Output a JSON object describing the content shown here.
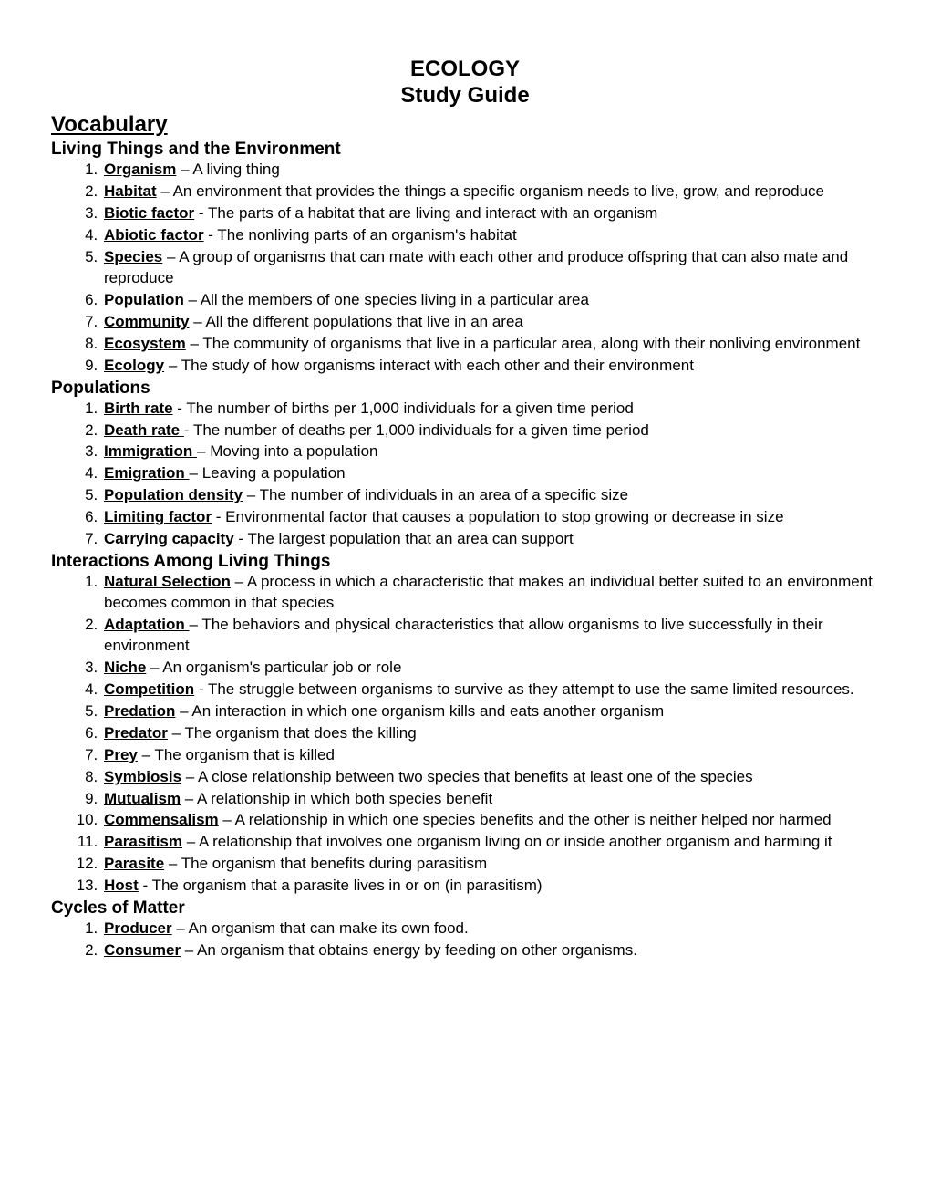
{
  "title_line1": "ECOLOGY",
  "title_line2": "Study Guide",
  "vocab_heading": "Vocabulary",
  "sections": [
    {
      "heading": "Living Things and the Environment",
      "items": [
        {
          "term": "Organism",
          "def": " – A living thing"
        },
        {
          "term": "Habitat",
          "def": " – An environment that provides the things a specific organism needs to live, grow, and reproduce"
        },
        {
          "term": "Biotic factor",
          "def": " - The parts of a habitat that are living and interact with an organism"
        },
        {
          "term": "Abiotic factor",
          "def": " - The nonliving parts of an organism's habitat"
        },
        {
          "term": "Species",
          "def": " – A group of organisms that can mate with each other and produce offspring that can also mate and reproduce"
        },
        {
          "term": "Population",
          "def": " – All the members of one species living in a particular area"
        },
        {
          "term": "Community",
          "def": " – All the different populations that live in an area"
        },
        {
          "term": "Ecosystem",
          "def": " – The community of organisms that live in a particular area, along with their nonliving environment"
        },
        {
          "term": "Ecology",
          "def": " – The study of how organisms interact with each other and their environment"
        }
      ]
    },
    {
      "heading": "Populations",
      "items": [
        {
          "term": "Birth rate",
          "def": " - The number of births per 1,000 individuals for a given time period"
        },
        {
          "term": "Death rate ",
          "def": " - The number of deaths per 1,000 individuals for a given time period"
        },
        {
          "term": "Immigration ",
          "def": " – Moving into a population"
        },
        {
          "term": "Emigration ",
          "def": " – Leaving a population"
        },
        {
          "term": "Population density",
          "def": " – The number of individuals in an area of a specific size"
        },
        {
          "term": "Limiting factor",
          "def": " - Environmental factor that causes a population to stop growing or decrease in size"
        },
        {
          "term": "Carrying capacity",
          "def": " - The largest population that an area can support"
        }
      ]
    },
    {
      "heading": "Interactions Among Living Things",
      "items": [
        {
          "term": "Natural Selection",
          "def": " – A process in which a characteristic that makes an individual better suited to an environment becomes common in that species"
        },
        {
          "term": "Adaptation ",
          "def": " – The behaviors and physical characteristics that allow organisms to live successfully in their environment"
        },
        {
          "term": "Niche",
          "def": " – An organism's particular job or role"
        },
        {
          "term": "Competition",
          "def": " - The struggle between organisms to survive as they attempt to use the same limited resources."
        },
        {
          "term": "Predation",
          "def": " – An interaction in which one organism kills and eats another organism"
        },
        {
          "term": "Predator",
          "def": " – The organism that does the killing"
        },
        {
          "term": "Prey",
          "def": " – The organism that is killed"
        },
        {
          "term": "Symbiosis",
          "def": " – A close relationship between two species that benefits at least one of the species"
        },
        {
          "term": "Mutualism",
          "def": " – A relationship in which both species benefit"
        },
        {
          "term": "Commensalism",
          "def": " – A relationship in which one species benefits and the other is neither helped nor harmed"
        },
        {
          "term": "Parasitism",
          "def": " – A relationship that involves one organism living on or inside another organism and harming it"
        },
        {
          "term": "Parasite",
          "def": " – The organism that benefits during parasitism"
        },
        {
          "term": "Host",
          "def": " - The organism that a parasite lives in or on (in parasitism)"
        }
      ]
    },
    {
      "heading": "Cycles of Matter",
      "items": [
        {
          "term": "Producer",
          "def": " – An organism that can make its own food."
        },
        {
          "term": "Consumer",
          "def": " – An organism that obtains energy by feeding on other organisms."
        }
      ]
    }
  ]
}
